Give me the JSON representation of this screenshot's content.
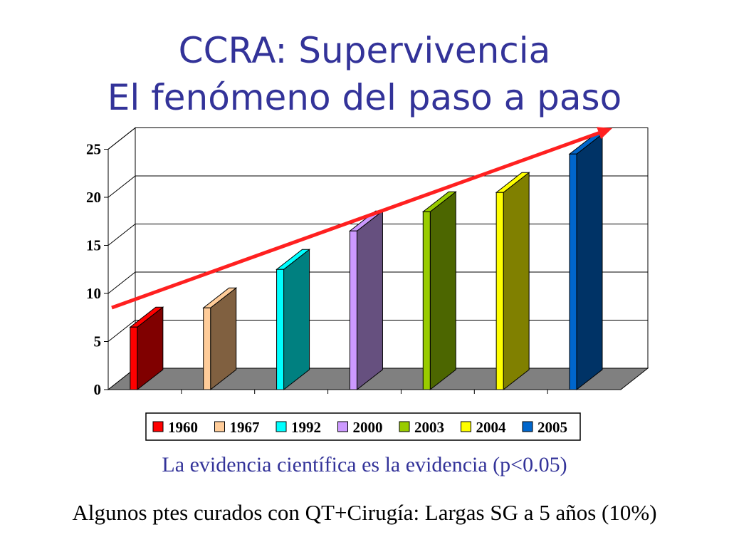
{
  "title_line1": "CCRA: Supervivencia",
  "title_line2": "El fenómeno del paso a paso",
  "caption1": "La evidencia científica es la evidencia (p<0.05)",
  "caption2": "Algunos ptes curados con QT+Cirugía: Largas SG a 5 años (10%)",
  "trend_arrow_color": "#ff2020",
  "chart_data": {
    "type": "bar",
    "style": "3d-column",
    "title": "",
    "xlabel": "",
    "ylabel": "",
    "ylim": [
      0,
      25
    ],
    "yticks": [
      0,
      5,
      10,
      15,
      20,
      25
    ],
    "grid": true,
    "legend_position": "bottom",
    "series": [
      {
        "name": "1960",
        "value": 6.5,
        "color": "#ff0000",
        "side": "#800000"
      },
      {
        "name": "1967",
        "value": 8.5,
        "color": "#ffcc99",
        "side": "#806040"
      },
      {
        "name": "1992",
        "value": 12.5,
        "color": "#00ffff",
        "side": "#008080"
      },
      {
        "name": "2000",
        "value": 16.5,
        "color": "#cc99ff",
        "side": "#66507f"
      },
      {
        "name": "2003",
        "value": 18.5,
        "color": "#99cc00",
        "side": "#4c6600"
      },
      {
        "name": "2004",
        "value": 20.5,
        "color": "#ffff00",
        "side": "#808000"
      },
      {
        "name": "2005",
        "value": 24.5,
        "color": "#0066cc",
        "side": "#003366"
      }
    ]
  }
}
